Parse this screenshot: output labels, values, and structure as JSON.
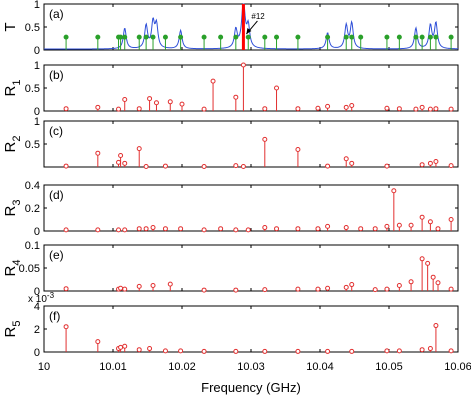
{
  "chart_data": {
    "type": "multi-panel stem + line",
    "xlabel": "Frequency (GHz)",
    "xlim": [
      10.0,
      10.06
    ],
    "xticks": [
      "10",
      "10.01",
      "10.02",
      "10.03",
      "10.04",
      "10.05",
      "10.06"
    ],
    "colors": {
      "transmission_line": "#3050d8",
      "green_stem": "#2aa02a",
      "red_stem": "#e23030",
      "highlight": "#ff0000"
    },
    "panels": [
      {
        "id": "a",
        "panel_label": "(a)",
        "ylabel": "T",
        "ylabel_sub": "",
        "ylim": [
          0,
          1
        ],
        "yticks": [
          "0",
          "0.5",
          "1"
        ],
        "highlight_frequency": 10.0289,
        "annotation": "#12",
        "transmission_peaks": [
          {
            "f": 10.0117,
            "h": 0.45,
            "w": 0.00025
          },
          {
            "f": 10.0148,
            "h": 0.5,
            "w": 0.00025
          },
          {
            "f": 10.0158,
            "h": 0.55,
            "w": 0.00025
          },
          {
            "f": 10.0163,
            "h": 0.5,
            "w": 0.00025
          },
          {
            "f": 10.0198,
            "h": 0.4,
            "w": 0.00025
          },
          {
            "f": 10.0278,
            "h": 0.4,
            "w": 0.00025
          },
          {
            "f": 10.0289,
            "h": 1.0,
            "w": 0.0003
          },
          {
            "f": 10.0296,
            "h": 0.45,
            "w": 0.00025
          },
          {
            "f": 10.0411,
            "h": 0.35,
            "w": 0.00025
          },
          {
            "f": 10.0438,
            "h": 0.5,
            "w": 0.00025
          },
          {
            "f": 10.0446,
            "h": 0.55,
            "w": 0.00025
          },
          {
            "f": 10.0539,
            "h": 0.45,
            "w": 0.00025
          },
          {
            "f": 10.056,
            "h": 0.5,
            "w": 0.00025
          },
          {
            "f": 10.0568,
            "h": 0.55,
            "w": 0.00025
          }
        ],
        "stems": [
          {
            "f": 10.0032,
            "v": 0.28
          },
          {
            "f": 10.0078,
            "v": 0.28
          },
          {
            "f": 10.0108,
            "v": 0.28
          },
          {
            "f": 10.0111,
            "v": 0.28
          },
          {
            "f": 10.0117,
            "v": 0.28
          },
          {
            "f": 10.0138,
            "v": 0.28
          },
          {
            "f": 10.0148,
            "v": 0.28
          },
          {
            "f": 10.0158,
            "v": 0.28
          },
          {
            "f": 10.0176,
            "v": 0.28
          },
          {
            "f": 10.0198,
            "v": 0.28
          },
          {
            "f": 10.0232,
            "v": 0.28
          },
          {
            "f": 10.0256,
            "v": 0.28
          },
          {
            "f": 10.0278,
            "v": 0.28
          },
          {
            "f": 10.0296,
            "v": 0.28
          },
          {
            "f": 10.032,
            "v": 0.28
          },
          {
            "f": 10.0337,
            "v": 0.28
          },
          {
            "f": 10.0368,
            "v": 0.28
          },
          {
            "f": 10.0411,
            "v": 0.28
          },
          {
            "f": 10.0438,
            "v": 0.28
          },
          {
            "f": 10.0446,
            "v": 0.28
          },
          {
            "f": 10.0459,
            "v": 0.28
          },
          {
            "f": 10.0497,
            "v": 0.28
          },
          {
            "f": 10.0515,
            "v": 0.28
          },
          {
            "f": 10.0539,
            "v": 0.28
          },
          {
            "f": 10.0548,
            "v": 0.28
          },
          {
            "f": 10.056,
            "v": 0.28
          },
          {
            "f": 10.0568,
            "v": 0.28
          },
          {
            "f": 10.059,
            "v": 0.28
          }
        ]
      },
      {
        "id": "b",
        "panel_label": "(b)",
        "ylabel": "R",
        "ylabel_sub": "1",
        "ylim": [
          0,
          1
        ],
        "yticks": [
          "0",
          "0.5",
          "1"
        ],
        "stems": [
          {
            "f": 10.0032,
            "v": 0.05
          },
          {
            "f": 10.0078,
            "v": 0.08
          },
          {
            "f": 10.0108,
            "v": 0.04
          },
          {
            "f": 10.0117,
            "v": 0.25
          },
          {
            "f": 10.0138,
            "v": 0.05
          },
          {
            "f": 10.0153,
            "v": 0.27
          },
          {
            "f": 10.0163,
            "v": 0.18
          },
          {
            "f": 10.0183,
            "v": 0.2
          },
          {
            "f": 10.02,
            "v": 0.15
          },
          {
            "f": 10.0232,
            "v": 0.04
          },
          {
            "f": 10.0245,
            "v": 0.65
          },
          {
            "f": 10.0278,
            "v": 0.3
          },
          {
            "f": 10.0289,
            "v": 1.0
          },
          {
            "f": 10.032,
            "v": 0.05
          },
          {
            "f": 10.0337,
            "v": 0.5
          },
          {
            "f": 10.0368,
            "v": 0.05
          },
          {
            "f": 10.0397,
            "v": 0.06
          },
          {
            "f": 10.0411,
            "v": 0.1
          },
          {
            "f": 10.0438,
            "v": 0.08
          },
          {
            "f": 10.0446,
            "v": 0.12
          },
          {
            "f": 10.0497,
            "v": 0.06
          },
          {
            "f": 10.0515,
            "v": 0.05
          },
          {
            "f": 10.0539,
            "v": 0.04
          },
          {
            "f": 10.0548,
            "v": 0.08
          },
          {
            "f": 10.056,
            "v": 0.04
          },
          {
            "f": 10.0568,
            "v": 0.05
          },
          {
            "f": 10.059,
            "v": 0.04
          }
        ]
      },
      {
        "id": "c",
        "panel_label": "(c)",
        "ylabel": "R",
        "ylabel_sub": "2",
        "ylim": [
          0,
          1
        ],
        "yticks": [
          "0.5",
          "1"
        ],
        "stems": [
          {
            "f": 10.0032,
            "v": 0.02
          },
          {
            "f": 10.0078,
            "v": 0.3
          },
          {
            "f": 10.0108,
            "v": 0.1
          },
          {
            "f": 10.0111,
            "v": 0.25
          },
          {
            "f": 10.0117,
            "v": 0.08
          },
          {
            "f": 10.0138,
            "v": 0.4
          },
          {
            "f": 10.0148,
            "v": 0.01
          },
          {
            "f": 10.0176,
            "v": 0.02
          },
          {
            "f": 10.0232,
            "v": 0.01
          },
          {
            "f": 10.0278,
            "v": 0.03
          },
          {
            "f": 10.0289,
            "v": 0.01
          },
          {
            "f": 10.032,
            "v": 0.6
          },
          {
            "f": 10.0368,
            "v": 0.38
          },
          {
            "f": 10.0411,
            "v": 0.02
          },
          {
            "f": 10.0438,
            "v": 0.18
          },
          {
            "f": 10.0446,
            "v": 0.08
          },
          {
            "f": 10.0497,
            "v": 0.02
          },
          {
            "f": 10.0548,
            "v": 0.05
          },
          {
            "f": 10.056,
            "v": 0.08
          },
          {
            "f": 10.0568,
            "v": 0.12
          },
          {
            "f": 10.059,
            "v": 0.03
          }
        ]
      },
      {
        "id": "d",
        "panel_label": "(d)",
        "ylabel": "R",
        "ylabel_sub": "3",
        "ylim": [
          0,
          0.4
        ],
        "yticks": [
          "0",
          "0.2",
          "0.4"
        ],
        "stems": [
          {
            "f": 10.0032,
            "v": 0.01
          },
          {
            "f": 10.0078,
            "v": 0.01
          },
          {
            "f": 10.0108,
            "v": 0.01
          },
          {
            "f": 10.0117,
            "v": 0.01
          },
          {
            "f": 10.0138,
            "v": 0.02
          },
          {
            "f": 10.0148,
            "v": 0.02
          },
          {
            "f": 10.0158,
            "v": 0.03
          },
          {
            "f": 10.0176,
            "v": 0.02
          },
          {
            "f": 10.0198,
            "v": 0.02
          },
          {
            "f": 10.0232,
            "v": 0.01
          },
          {
            "f": 10.0256,
            "v": 0.02
          },
          {
            "f": 10.0278,
            "v": 0.01
          },
          {
            "f": 10.0296,
            "v": 0.01
          },
          {
            "f": 10.032,
            "v": 0.03
          },
          {
            "f": 10.0337,
            "v": 0.02
          },
          {
            "f": 10.0368,
            "v": 0.02
          },
          {
            "f": 10.0397,
            "v": 0.02
          },
          {
            "f": 10.0411,
            "v": 0.04
          },
          {
            "f": 10.0438,
            "v": 0.03
          },
          {
            "f": 10.0459,
            "v": 0.02
          },
          {
            "f": 10.048,
            "v": 0.02
          },
          {
            "f": 10.0497,
            "v": 0.04
          },
          {
            "f": 10.0507,
            "v": 0.35
          },
          {
            "f": 10.0515,
            "v": 0.05
          },
          {
            "f": 10.0532,
            "v": 0.05
          },
          {
            "f": 10.0548,
            "v": 0.12
          },
          {
            "f": 10.056,
            "v": 0.08
          },
          {
            "f": 10.0571,
            "v": 0.02
          },
          {
            "f": 10.059,
            "v": 0.1
          }
        ]
      },
      {
        "id": "e",
        "panel_label": "(e)",
        "ylabel": "R",
        "ylabel_sub": "4",
        "ylim": [
          0,
          0.1
        ],
        "yticks": [
          "0",
          "0.05",
          "0.1"
        ],
        "stems": [
          {
            "f": 10.0032,
            "v": 0.005
          },
          {
            "f": 10.0108,
            "v": 0.004
          },
          {
            "f": 10.0111,
            "v": 0.006
          },
          {
            "f": 10.0117,
            "v": 0.004
          },
          {
            "f": 10.0138,
            "v": 0.01
          },
          {
            "f": 10.0158,
            "v": 0.012
          },
          {
            "f": 10.0183,
            "v": 0.015
          },
          {
            "f": 10.0232,
            "v": 0.002
          },
          {
            "f": 10.0278,
            "v": 0.002
          },
          {
            "f": 10.032,
            "v": 0.003
          },
          {
            "f": 10.0368,
            "v": 0.004
          },
          {
            "f": 10.0397,
            "v": 0.004
          },
          {
            "f": 10.0411,
            "v": 0.006
          },
          {
            "f": 10.0438,
            "v": 0.008
          },
          {
            "f": 10.0446,
            "v": 0.014
          },
          {
            "f": 10.048,
            "v": 0.003
          },
          {
            "f": 10.0497,
            "v": 0.004
          },
          {
            "f": 10.0515,
            "v": 0.012
          },
          {
            "f": 10.0532,
            "v": 0.02
          },
          {
            "f": 10.0548,
            "v": 0.07
          },
          {
            "f": 10.0556,
            "v": 0.06
          },
          {
            "f": 10.0564,
            "v": 0.03
          },
          {
            "f": 10.0571,
            "v": 0.018
          },
          {
            "f": 10.059,
            "v": 0.004
          }
        ]
      },
      {
        "id": "f",
        "panel_label": "(f)",
        "ylabel": "R",
        "ylabel_sub": "5",
        "ylim": [
          0,
          4
        ],
        "yticks": [
          "0",
          "2",
          "4"
        ],
        "multiplier": "x 10",
        "multiplier_exp": "-3",
        "stems": [
          {
            "f": 10.0032,
            "v": 2.2
          },
          {
            "f": 10.0078,
            "v": 0.9
          },
          {
            "f": 10.0108,
            "v": 0.3
          },
          {
            "f": 10.0111,
            "v": 0.4
          },
          {
            "f": 10.0117,
            "v": 0.5
          },
          {
            "f": 10.0138,
            "v": 0.2
          },
          {
            "f": 10.0153,
            "v": 0.3
          },
          {
            "f": 10.0176,
            "v": 0.1
          },
          {
            "f": 10.0198,
            "v": 0.1
          },
          {
            "f": 10.0232,
            "v": 0.05
          },
          {
            "f": 10.0278,
            "v": 0.05
          },
          {
            "f": 10.032,
            "v": 0.05
          },
          {
            "f": 10.0368,
            "v": 0.05
          },
          {
            "f": 10.0411,
            "v": 0.05
          },
          {
            "f": 10.0446,
            "v": 0.05
          },
          {
            "f": 10.0497,
            "v": 0.1
          },
          {
            "f": 10.0515,
            "v": 0.1
          },
          {
            "f": 10.0548,
            "v": 0.2
          },
          {
            "f": 10.056,
            "v": 0.3
          },
          {
            "f": 10.0568,
            "v": 2.3
          },
          {
            "f": 10.059,
            "v": 0.1
          }
        ]
      }
    ]
  }
}
